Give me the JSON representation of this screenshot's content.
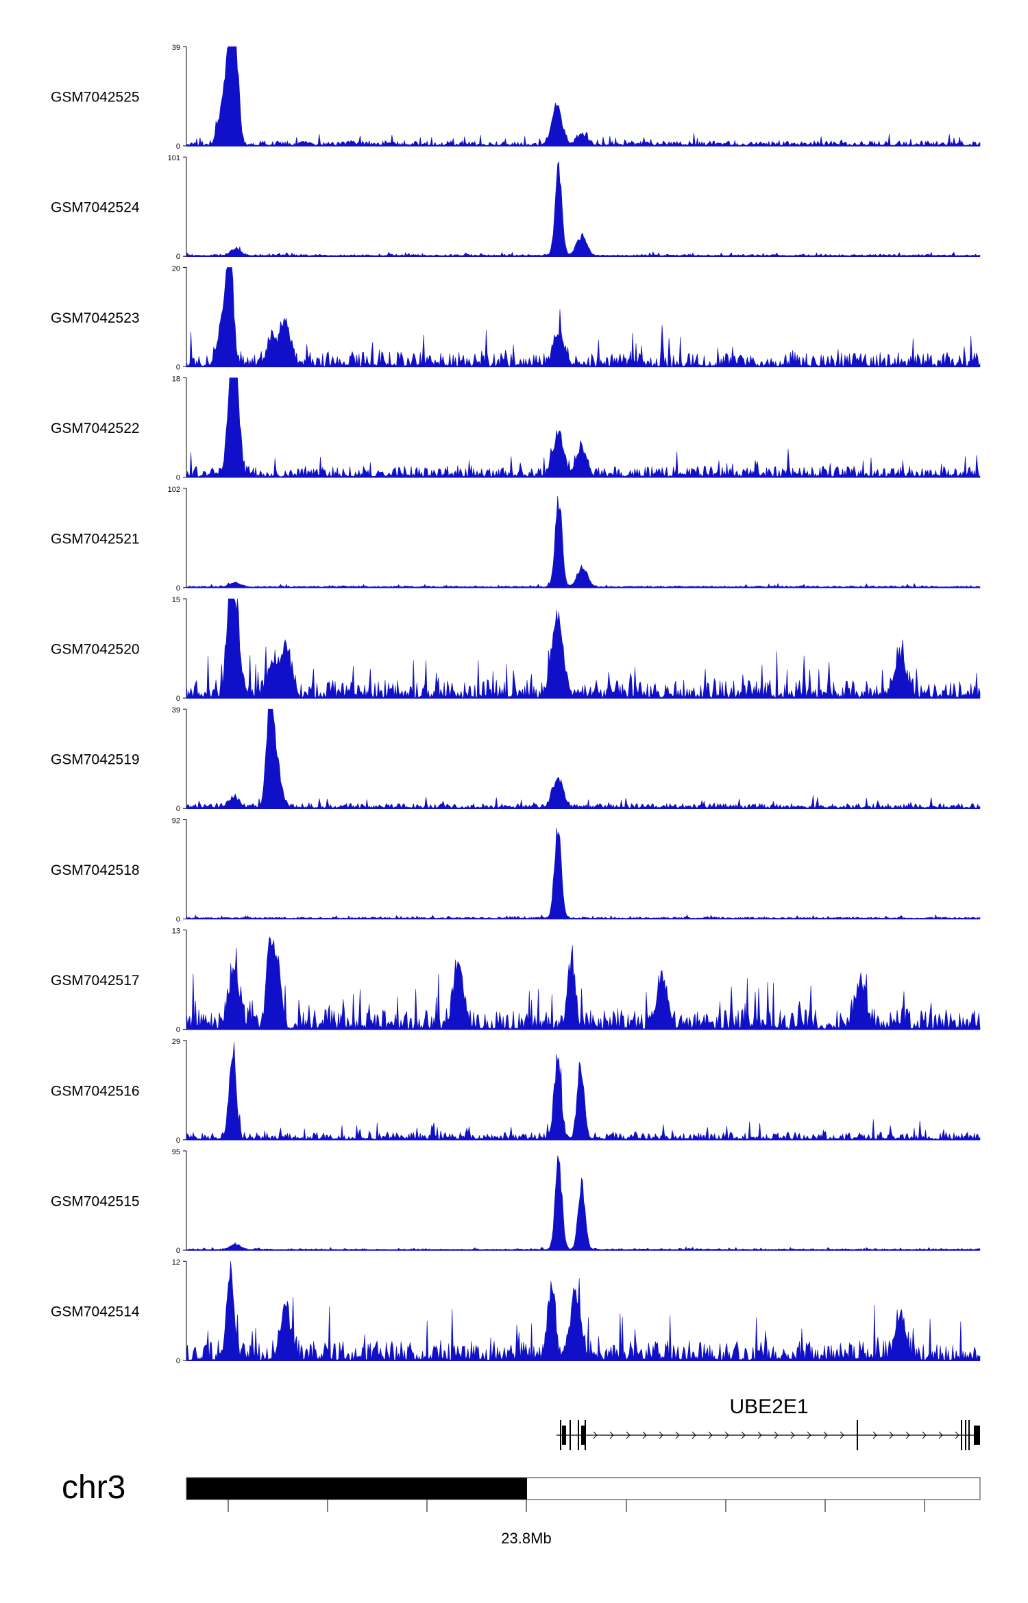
{
  "colors": {
    "signal": "#1010c8",
    "axis": "#000000",
    "ideogram": "#000000",
    "gene": "#000000"
  },
  "chart_data": {
    "type": "area",
    "region": {
      "chromosome": "chr3",
      "tick_label": "23.8Mb"
    },
    "tracks": [
      {
        "name": "GSM7042525",
        "ymin": 0,
        "ymax": 39,
        "peaks": [
          [
            0.055,
            0.85
          ],
          [
            0.062,
            1.0
          ],
          [
            0.048,
            0.55
          ],
          [
            0.467,
            0.45
          ],
          [
            0.498,
            0.12
          ]
        ],
        "noise": 0.05
      },
      {
        "name": "GSM7042524",
        "ymin": 0,
        "ymax": 101,
        "peaks": [
          [
            0.469,
            1.0
          ],
          [
            0.498,
            0.22
          ],
          [
            0.062,
            0.08
          ]
        ],
        "noise": 0.018
      },
      {
        "name": "GSM7042523",
        "ymin": 0,
        "ymax": 20,
        "peaks": [
          [
            0.055,
            0.95
          ],
          [
            0.047,
            0.55
          ],
          [
            0.125,
            0.45
          ],
          [
            0.108,
            0.3
          ],
          [
            0.47,
            0.35
          ]
        ],
        "noise": 0.16
      },
      {
        "name": "GSM7042522",
        "ymin": 0,
        "ymax": 18,
        "peaks": [
          [
            0.055,
            0.95
          ],
          [
            0.063,
            1.0
          ],
          [
            0.469,
            0.48
          ],
          [
            0.497,
            0.3
          ]
        ],
        "noise": 0.12
      },
      {
        "name": "GSM7042521",
        "ymin": 0,
        "ymax": 102,
        "peaks": [
          [
            0.469,
            1.0
          ],
          [
            0.499,
            0.22
          ],
          [
            0.061,
            0.05
          ]
        ],
        "noise": 0.015
      },
      {
        "name": "GSM7042520",
        "ymin": 0,
        "ymax": 15,
        "peaks": [
          [
            0.055,
            1.0
          ],
          [
            0.062,
            0.7
          ],
          [
            0.125,
            0.55
          ],
          [
            0.108,
            0.35
          ],
          [
            0.465,
            0.55
          ],
          [
            0.47,
            0.45
          ],
          [
            0.9,
            0.5
          ]
        ],
        "noise": 0.2
      },
      {
        "name": "GSM7042519",
        "ymin": 0,
        "ymax": 39,
        "peaks": [
          [
            0.105,
            1.0
          ],
          [
            0.112,
            0.55
          ],
          [
            0.06,
            0.12
          ],
          [
            0.468,
            0.35
          ]
        ],
        "noise": 0.05
      },
      {
        "name": "GSM7042518",
        "ymin": 0,
        "ymax": 92,
        "peaks": [
          [
            0.468,
            1.0
          ]
        ],
        "noise": 0.015
      },
      {
        "name": "GSM7042517",
        "ymin": 0,
        "ymax": 13,
        "peaks": [
          [
            0.06,
            0.7
          ],
          [
            0.105,
            0.9
          ],
          [
            0.115,
            0.75
          ],
          [
            0.343,
            0.65
          ],
          [
            0.485,
            0.75
          ],
          [
            0.6,
            0.55
          ],
          [
            0.85,
            0.5
          ]
        ],
        "noise": 0.22
      },
      {
        "name": "GSM7042516",
        "ymin": 0,
        "ymax": 29,
        "peaks": [
          [
            0.058,
            1.0
          ],
          [
            0.468,
            0.88
          ],
          [
            0.497,
            0.85
          ]
        ],
        "noise": 0.08
      },
      {
        "name": "GSM7042515",
        "ymin": 0,
        "ymax": 95,
        "peaks": [
          [
            0.469,
            1.0
          ],
          [
            0.498,
            0.75
          ],
          [
            0.062,
            0.06
          ]
        ],
        "noise": 0.012
      },
      {
        "name": "GSM7042514",
        "ymin": 0,
        "ymax": 12,
        "peaks": [
          [
            0.055,
            1.0
          ],
          [
            0.125,
            0.55
          ],
          [
            0.46,
            0.85
          ],
          [
            0.49,
            0.65
          ],
          [
            0.9,
            0.45
          ]
        ],
        "noise": 0.22
      }
    ],
    "gene": {
      "name": "UBE2E1",
      "strand": "+"
    }
  }
}
